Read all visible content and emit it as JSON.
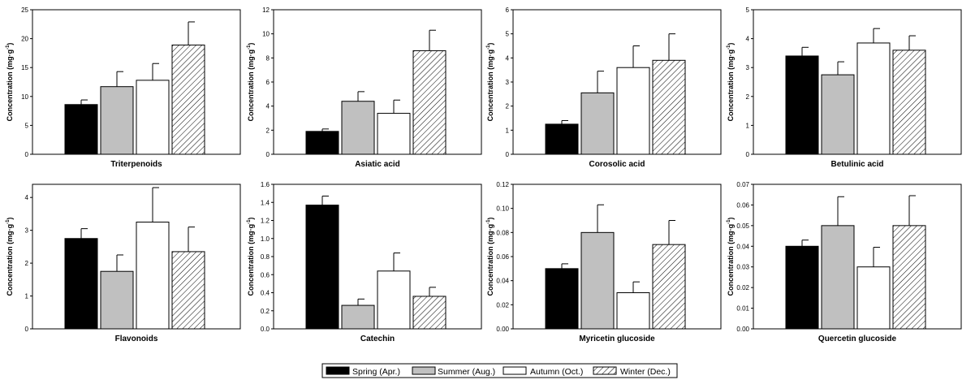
{
  "legend": {
    "entries": [
      {
        "label": "Spring (Apr.)",
        "pattern": "solid-black"
      },
      {
        "label": "Summer (Aug.)",
        "pattern": "solid-gray"
      },
      {
        "label": "Autumn (Oct.)",
        "pattern": "white"
      },
      {
        "label": "Winter (Dec.)",
        "pattern": "diagonal-hatch"
      }
    ],
    "placement": "bottom-center"
  },
  "colors": {
    "spring": "#000000",
    "summer": "#c0c0c0",
    "autumn": "#ffffff",
    "winter_hatch": "#000000"
  },
  "chart_data": [
    {
      "type": "bar",
      "xlabel": "Triterpenoids",
      "ylabel": "Concentration (mg·g",
      "ylabel_sup": "-1",
      "ylabel_close": ")",
      "ylim": [
        0,
        25
      ],
      "yticks": [
        "0",
        "5",
        "10",
        "15",
        "20",
        "25"
      ],
      "categories": [
        "Spring (Apr.)",
        "Summer (Aug.)",
        "Autumn (Oct.)",
        "Winter (Dec.)"
      ],
      "values": [
        8.6,
        11.7,
        12.8,
        18.9
      ],
      "errors": [
        0.8,
        2.6,
        2.9,
        4.0
      ],
      "grid": false
    },
    {
      "type": "bar",
      "xlabel": "Asiatic acid",
      "ylabel": "Concentration (mg·g",
      "ylabel_sup": "-1",
      "ylabel_close": ")",
      "ylim": [
        0,
        12
      ],
      "yticks": [
        "0",
        "2",
        "4",
        "6",
        "8",
        "10",
        "12"
      ],
      "categories": [
        "Spring (Apr.)",
        "Summer (Aug.)",
        "Autumn (Oct.)",
        "Winter (Dec.)"
      ],
      "values": [
        1.9,
        4.4,
        3.4,
        8.6
      ],
      "errors": [
        0.2,
        0.8,
        1.1,
        1.7
      ],
      "grid": false
    },
    {
      "type": "bar",
      "xlabel": "Corosolic acid",
      "ylabel": "Concentration (mg·g",
      "ylabel_sup": "-1",
      "ylabel_close": ")",
      "ylim": [
        0,
        6
      ],
      "yticks": [
        "0",
        "1",
        "2",
        "3",
        "4",
        "5",
        "6"
      ],
      "categories": [
        "Spring (Apr.)",
        "Summer (Aug.)",
        "Autumn (Oct.)",
        "Winter (Dec.)"
      ],
      "values": [
        1.25,
        2.55,
        3.6,
        3.9
      ],
      "errors": [
        0.15,
        0.9,
        0.9,
        1.1
      ],
      "grid": false
    },
    {
      "type": "bar",
      "xlabel": "Betulinic acid",
      "ylabel": "Concentration (mg·g",
      "ylabel_sup": "-1",
      "ylabel_close": ")",
      "ylim": [
        0,
        5
      ],
      "yticks": [
        "0",
        "1",
        "2",
        "3",
        "4",
        "5"
      ],
      "categories": [
        "Spring (Apr.)",
        "Summer (Aug.)",
        "Autumn (Oct.)",
        "Winter (Dec.)"
      ],
      "values": [
        3.4,
        2.75,
        3.85,
        3.6
      ],
      "errors": [
        0.3,
        0.45,
        0.5,
        0.5
      ],
      "grid": false
    },
    {
      "type": "bar",
      "xlabel": "Flavonoids",
      "ylabel": "Concentration (mg·g",
      "ylabel_sup": "-1",
      "ylabel_close": ")",
      "ylim": [
        0,
        4.4
      ],
      "yticks": [
        "0",
        "1",
        "2",
        "3",
        "4"
      ],
      "categories": [
        "Spring (Apr.)",
        "Summer (Aug.)",
        "Autumn (Oct.)",
        "Winter (Dec.)"
      ],
      "values": [
        2.75,
        1.75,
        3.25,
        2.35
      ],
      "errors": [
        0.3,
        0.5,
        1.05,
        0.75
      ],
      "grid": false
    },
    {
      "type": "bar",
      "xlabel": "Catechin",
      "ylabel": "Concentration (mg·g",
      "ylabel_sup": "-1",
      "ylabel_close": ")",
      "ylim": [
        0,
        1.6
      ],
      "yticks": [
        "0.0",
        "0.2",
        "0.4",
        "0.6",
        "0.8",
        "1.0",
        "1.2",
        "1.4",
        "1.6"
      ],
      "categories": [
        "Spring (Apr.)",
        "Summer (Aug.)",
        "Autumn (Oct.)",
        "Winter (Dec.)"
      ],
      "values": [
        1.37,
        0.26,
        0.64,
        0.36
      ],
      "errors": [
        0.1,
        0.07,
        0.2,
        0.1
      ],
      "grid": false
    },
    {
      "type": "bar",
      "xlabel": "Myricetin glucoside",
      "ylabel": "Concentration (mg·g",
      "ylabel_sup": "-1",
      "ylabel_close": ")",
      "ylim": [
        0,
        0.12
      ],
      "yticks": [
        "0.00",
        "0.02",
        "0.04",
        "0.06",
        "0.08",
        "0.10",
        "0.12"
      ],
      "categories": [
        "Spring (Apr.)",
        "Summer (Aug.)",
        "Autumn (Oct.)",
        "Winter (Dec.)"
      ],
      "values": [
        0.05,
        0.08,
        0.03,
        0.07
      ],
      "errors": [
        0.004,
        0.023,
        0.009,
        0.02
      ],
      "grid": false
    },
    {
      "type": "bar",
      "xlabel": "Quercetin glucoside",
      "ylabel": "Concentration (mg·g",
      "ylabel_sup": "-1",
      "ylabel_close": ")",
      "ylim": [
        0,
        0.07
      ],
      "yticks": [
        "0.00",
        "0.01",
        "0.02",
        "0.03",
        "0.04",
        "0.05",
        "0.06",
        "0.07"
      ],
      "categories": [
        "Spring (Apr.)",
        "Summer (Aug.)",
        "Autumn (Oct.)",
        "Winter (Dec.)"
      ],
      "values": [
        0.04,
        0.05,
        0.03,
        0.05
      ],
      "errors": [
        0.003,
        0.014,
        0.0095,
        0.0145
      ],
      "grid": false
    }
  ]
}
